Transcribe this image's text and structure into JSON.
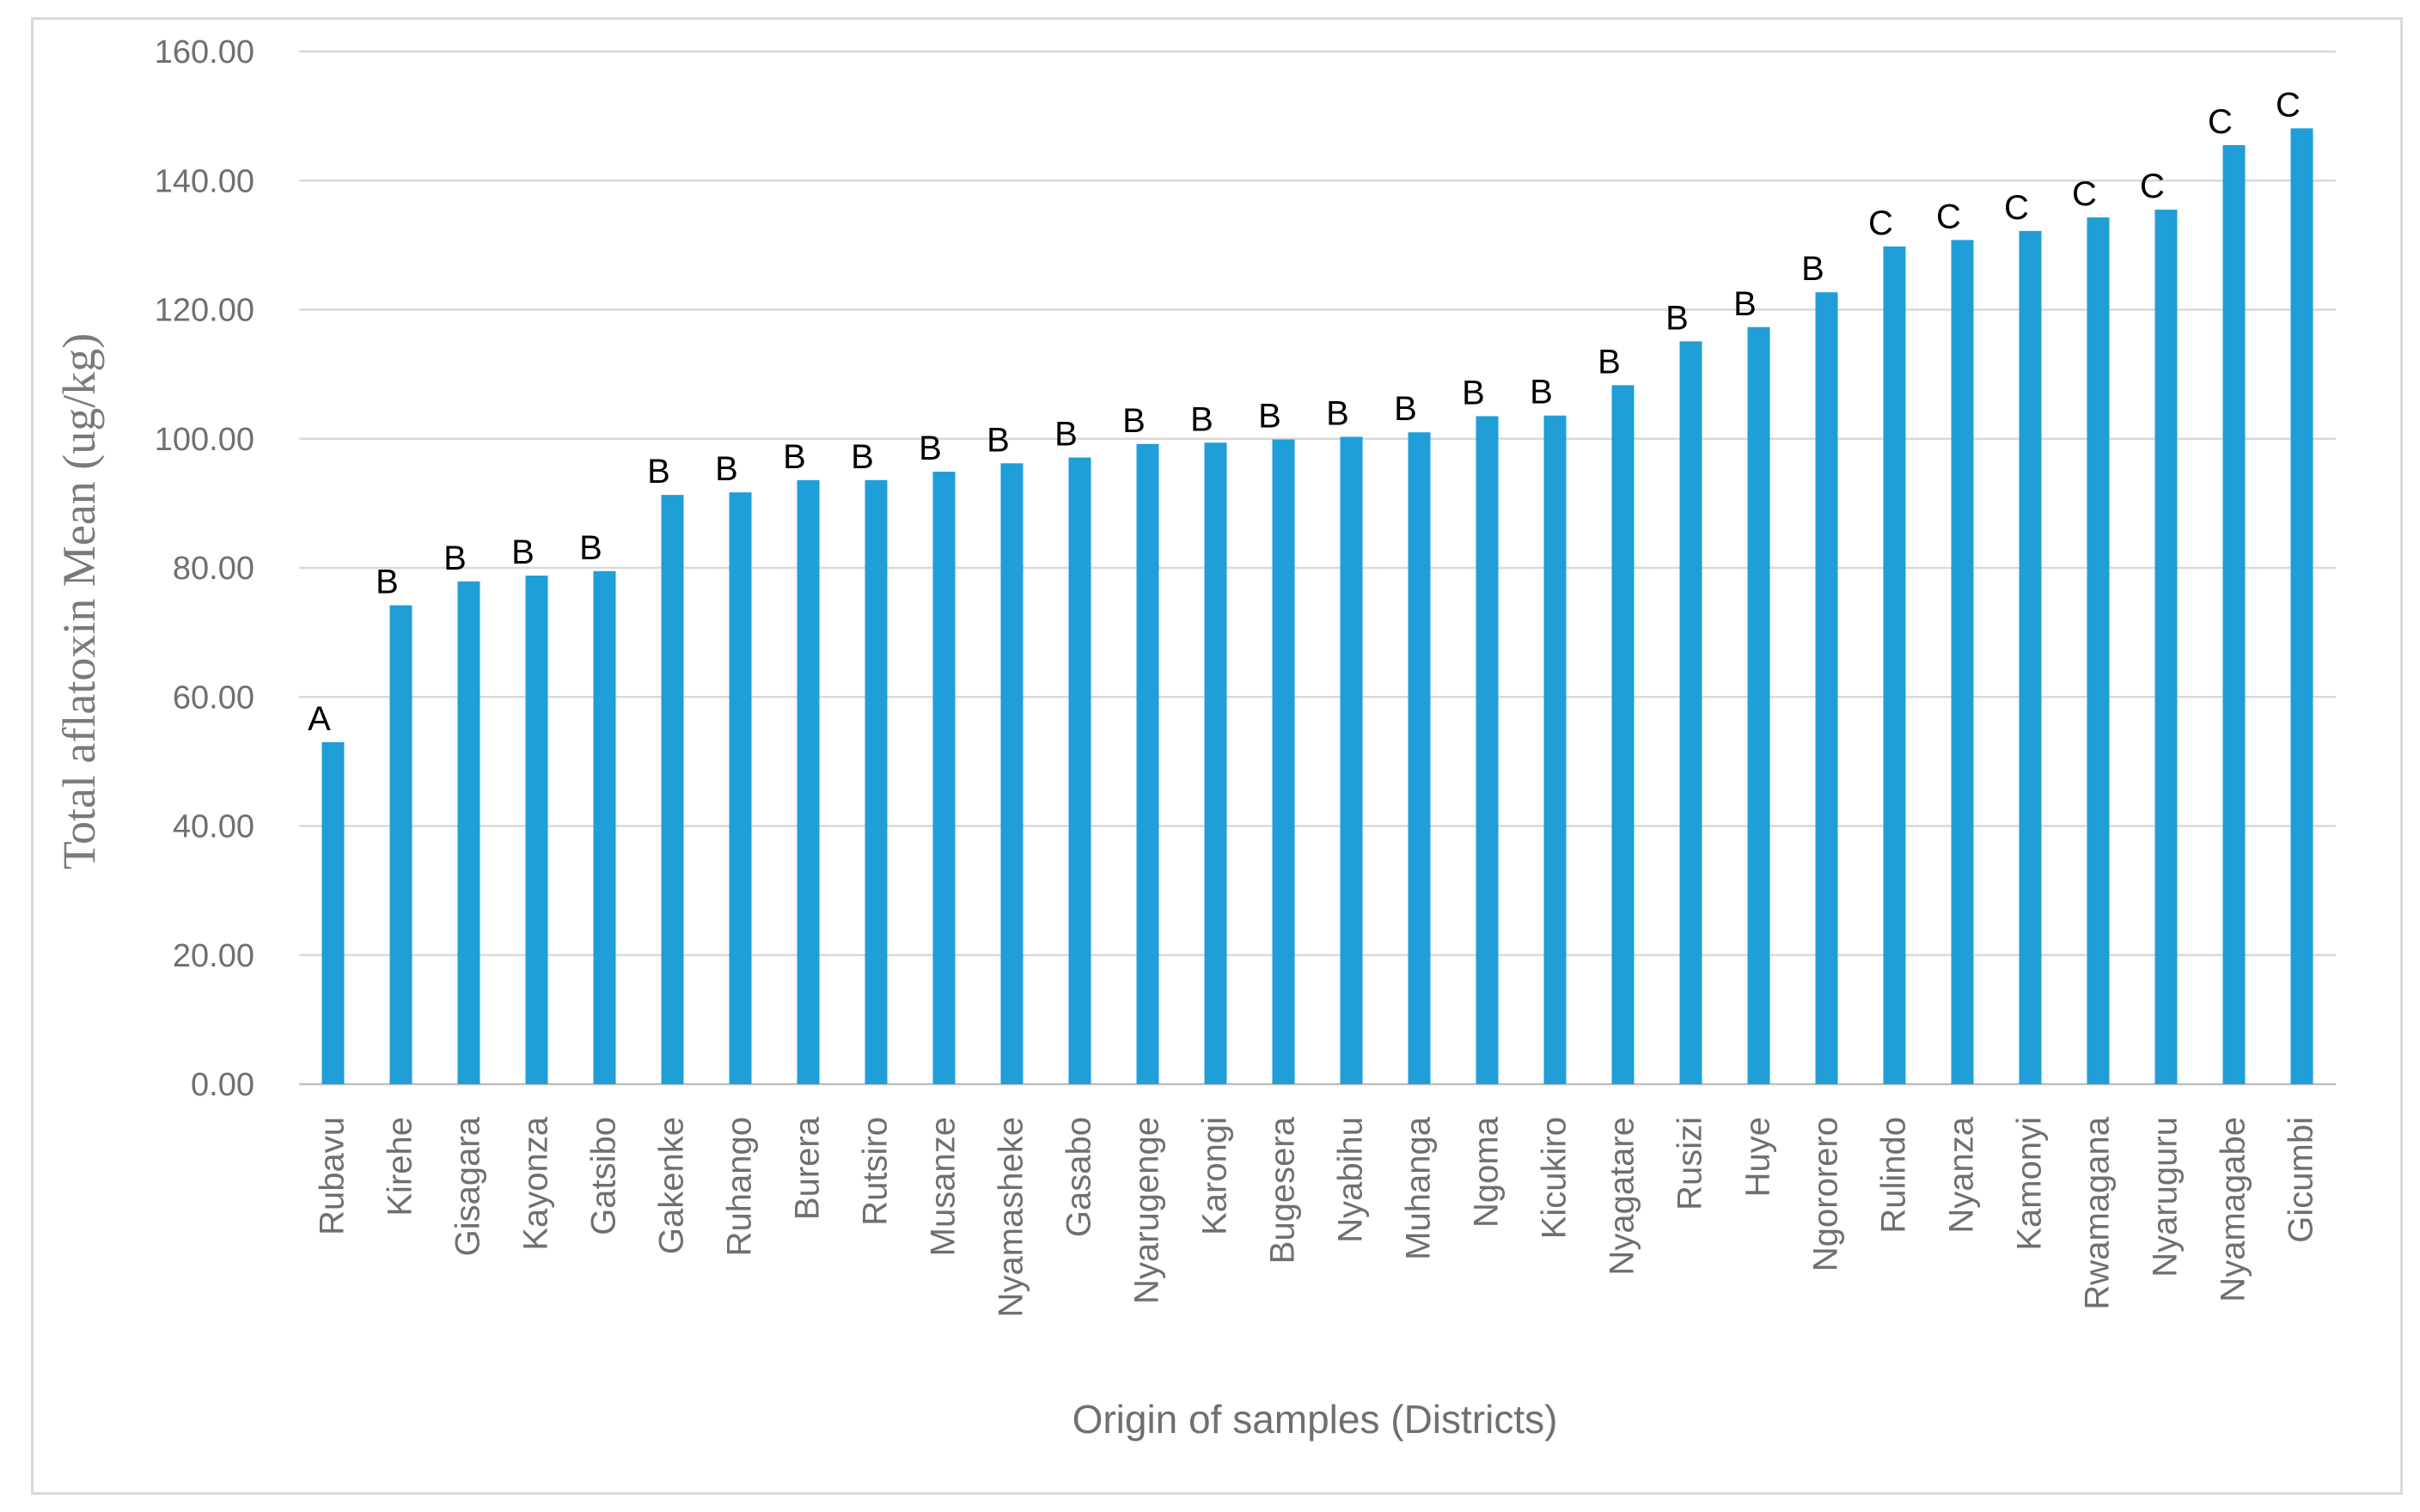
{
  "chart_data": {
    "type": "bar",
    "title": "",
    "xlabel": "Origin of samples (Districts)",
    "ylabel": "Total aflatoxin Mean  (ug/kg)",
    "ylim": [
      0,
      160
    ],
    "yticks": [
      "0.00",
      "20.00",
      "40.00",
      "60.00",
      "80.00",
      "100.00",
      "120.00",
      "140.00",
      "160.00"
    ],
    "grid": true,
    "bar_color": "#1f9ed8",
    "categories": [
      "Rubavu",
      "Kirehe",
      "Gisagara",
      "Kayonza",
      "Gatsibo",
      "Gakenke",
      "Ruhango",
      "Burera",
      "Rutsiro",
      "Musanze",
      "Nyamasheke",
      "Gasabo",
      "Nyarugenge",
      "Karongi",
      "Bugesera",
      "Nyabihu",
      "Muhanga",
      "Ngoma",
      "Kicukiro",
      "Nyagatare",
      "Rusizi",
      "Huye",
      "Ngororero",
      "Rulindo",
      "Nyanza",
      "Kamonyi",
      "Rwamagana",
      "Nyaruguru",
      "Nyamagabe",
      "Gicumbi"
    ],
    "values": [
      53.0,
      74.2,
      77.9,
      78.8,
      79.5,
      91.3,
      91.7,
      93.6,
      93.6,
      94.9,
      96.2,
      97.1,
      99.2,
      99.4,
      99.9,
      100.3,
      101.0,
      103.5,
      103.6,
      108.3,
      115.1,
      117.3,
      122.7,
      129.8,
      130.8,
      132.2,
      134.3,
      135.5,
      145.5,
      148.1
    ],
    "annotations": [
      "A",
      "B",
      "B",
      "B",
      "B",
      "B",
      "B",
      "B",
      "B",
      "B",
      "B",
      "B",
      "B",
      "B",
      "B",
      "B",
      "B",
      "B",
      "B",
      "B",
      "B",
      "B",
      "B",
      "C",
      "C",
      "C",
      "C",
      "C",
      "C",
      "C"
    ]
  }
}
